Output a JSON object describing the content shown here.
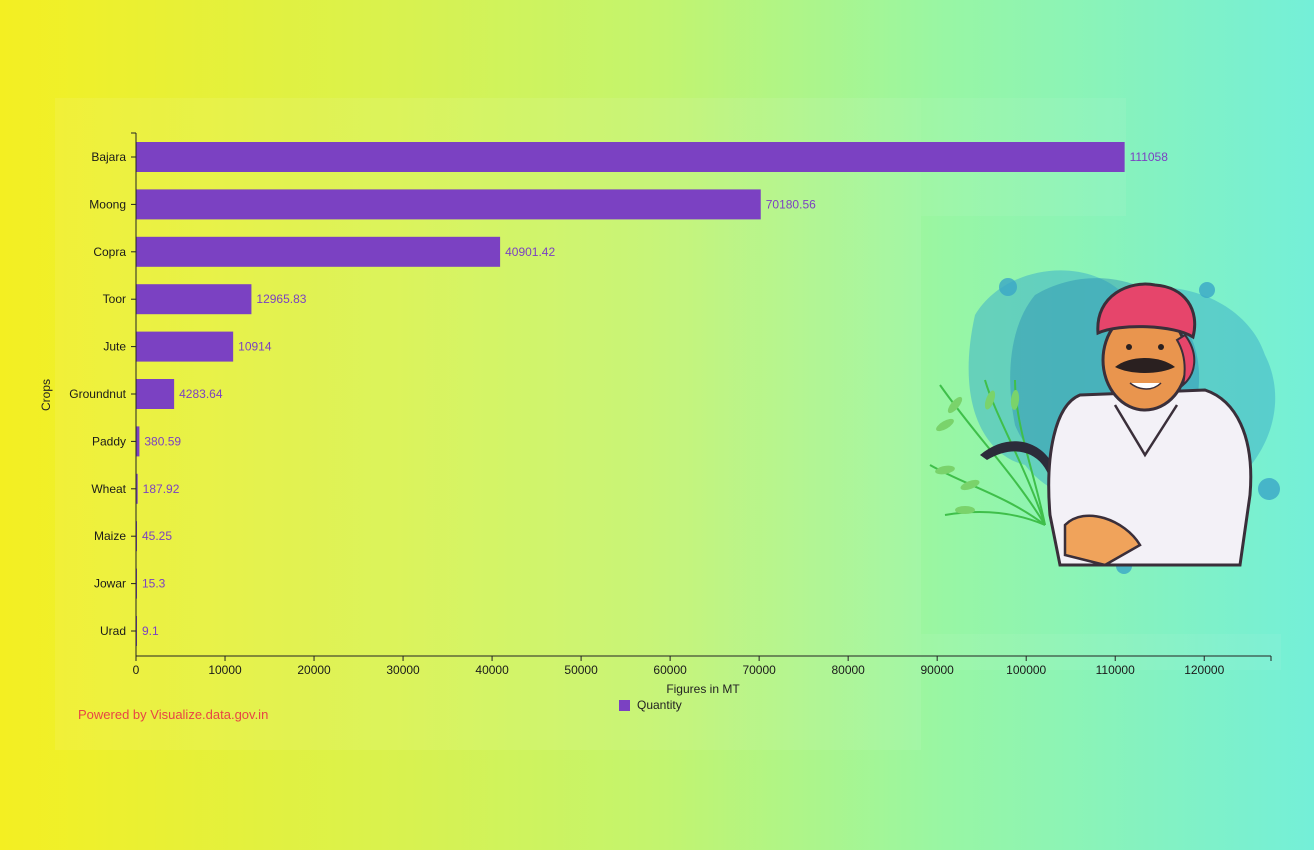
{
  "chart_data": {
    "type": "bar",
    "orientation": "horizontal",
    "categories": [
      "Bajara",
      "Moong",
      "Copra",
      "Toor",
      "Jute",
      "Groundnut",
      "Paddy",
      "Wheat",
      "Maize",
      "Jowar",
      "Urad"
    ],
    "series": [
      {
        "name": "Quantity",
        "values": [
          111058,
          70180.56,
          40901.42,
          12965.83,
          10914,
          4283.64,
          380.59,
          187.92,
          45.25,
          15.3,
          9.1
        ]
      }
    ],
    "data_labels": [
      "111058",
      "70180.56",
      "40901.42",
      "12965.83",
      "10914",
      "4283.64",
      "380.59",
      "187.92",
      "45.25",
      "15.3",
      "9.1"
    ],
    "xlabel": "Figures in MT",
    "ylabel": "Crops",
    "xlim": [
      0,
      127500
    ],
    "xticks": [
      0,
      10000,
      20000,
      30000,
      40000,
      50000,
      60000,
      70000,
      80000,
      90000,
      100000,
      110000,
      120000
    ],
    "grid": false,
    "legend_position": "bottom-center",
    "bar_color": "#7b41c2"
  },
  "legend": {
    "label": "Quantity"
  },
  "credit": "Powered by Visualize.data.gov.in",
  "illustration": {
    "name": "farmer-illustration"
  }
}
